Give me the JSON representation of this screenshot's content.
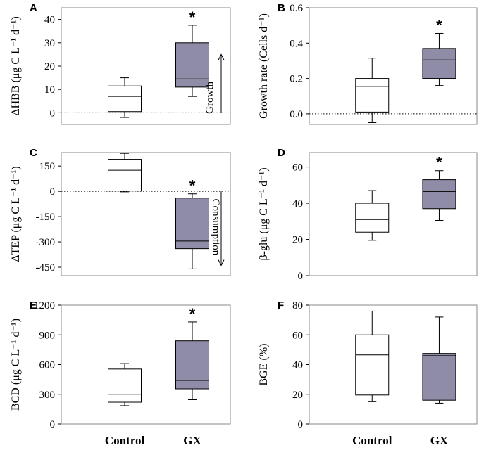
{
  "colors": {
    "control_fill": "#ffffff",
    "gx_fill": "#8e8ca6",
    "stroke": "#000000"
  },
  "x_categories": [
    "Control",
    "GX"
  ],
  "chart_data": [
    {
      "panel": "A",
      "type": "box",
      "ylabel": "ΔHBB (μg C L⁻¹ d⁻¹)",
      "ylim": [
        -5,
        45
      ],
      "yticks": [
        0,
        10,
        20,
        30,
        40
      ],
      "ytick_labels": [
        "0",
        "10",
        "20",
        "30",
        "40"
      ],
      "zero_line": true,
      "significance": "*",
      "significance_on": "GX",
      "annotation": {
        "text": "Growth",
        "direction": "up",
        "from": 0,
        "to": 25
      },
      "boxes": [
        {
          "name": "Control",
          "whisker_low": -2,
          "q1": 0.5,
          "median": 7,
          "q3": 11.5,
          "whisker_high": 15
        },
        {
          "name": "GX",
          "whisker_low": 7,
          "q1": 11,
          "median": 14.5,
          "q3": 30,
          "whisker_high": 37.5
        }
      ]
    },
    {
      "panel": "B",
      "type": "box",
      "ylabel": "Growth rate (Cells d⁻¹)",
      "ylim": [
        -0.06,
        0.6
      ],
      "yticks": [
        0,
        0.2,
        0.4,
        0.6
      ],
      "ytick_labels": [
        "0.0",
        "0.2",
        "0.4",
        "0.6"
      ],
      "zero_line": true,
      "significance": "*",
      "significance_on": "GX",
      "boxes": [
        {
          "name": "Control",
          "whisker_low": -0.05,
          "q1": 0.01,
          "median": 0.155,
          "q3": 0.2,
          "whisker_high": 0.315
        },
        {
          "name": "GX",
          "whisker_low": 0.16,
          "q1": 0.2,
          "median": 0.305,
          "q3": 0.37,
          "whisker_high": 0.455
        }
      ]
    },
    {
      "panel": "C",
      "type": "box",
      "ylabel": "ΔTEP (μg C L⁻¹ d⁻¹)",
      "ylim": [
        -500,
        230
      ],
      "yticks": [
        150,
        0,
        -150,
        -300,
        -450
      ],
      "ytick_labels": [
        "150",
        "0",
        "-150",
        "-300",
        "-450"
      ],
      "zero_line": true,
      "significance": "*",
      "significance_on": "GX",
      "annotation": {
        "text": "Consumption",
        "direction": "down",
        "from": 0,
        "to": -440
      },
      "boxes": [
        {
          "name": "Control",
          "whisker_low": -3,
          "q1": 2,
          "median": 125,
          "q3": 190,
          "whisker_high": 225
        },
        {
          "name": "GX",
          "whisker_low": -460,
          "q1": -340,
          "median": -295,
          "q3": -40,
          "whisker_high": -15
        }
      ]
    },
    {
      "panel": "D",
      "type": "box",
      "ylabel": "β-glu (μg C L⁻¹ d⁻¹)",
      "ylim": [
        0,
        68
      ],
      "yticks": [
        0,
        20,
        40,
        60
      ],
      "ytick_labels": [
        "0",
        "20",
        "40",
        "60"
      ],
      "zero_line": false,
      "significance": "*",
      "significance_on": "GX",
      "boxes": [
        {
          "name": "Control",
          "whisker_low": 19.5,
          "q1": 24,
          "median": 31,
          "q3": 40,
          "whisker_high": 47
        },
        {
          "name": "GX",
          "whisker_low": 30.5,
          "q1": 37,
          "median": 46.5,
          "q3": 53,
          "whisker_high": 58
        }
      ]
    },
    {
      "panel": "E",
      "type": "box",
      "ylabel": "BCD (μg C L⁻¹ d⁻¹)",
      "ylim": [
        0,
        1200
      ],
      "yticks": [
        0,
        300,
        600,
        900,
        1200
      ],
      "ytick_labels": [
        "0",
        "300",
        "600",
        "900",
        "1200"
      ],
      "zero_line": false,
      "significance": "*",
      "significance_on": "GX",
      "boxes": [
        {
          "name": "Control",
          "whisker_low": 185,
          "q1": 220,
          "median": 300,
          "q3": 555,
          "whisker_high": 610
        },
        {
          "name": "GX",
          "whisker_low": 245,
          "q1": 355,
          "median": 440,
          "q3": 840,
          "whisker_high": 1030
        }
      ]
    },
    {
      "panel": "F",
      "type": "box",
      "ylabel": "BGE (%)",
      "ylim": [
        0,
        80
      ],
      "yticks": [
        0,
        20,
        40,
        60,
        80
      ],
      "ytick_labels": [
        "0",
        "20",
        "40",
        "60",
        "80"
      ],
      "zero_line": false,
      "significance": "",
      "significance_on": "",
      "boxes": [
        {
          "name": "Control",
          "whisker_low": 15,
          "q1": 19.5,
          "median": 46.5,
          "q3": 60,
          "whisker_high": 76
        },
        {
          "name": "GX",
          "whisker_low": 14,
          "q1": 16,
          "median": 46,
          "q3": 47.5,
          "whisker_high": 72
        }
      ]
    }
  ]
}
